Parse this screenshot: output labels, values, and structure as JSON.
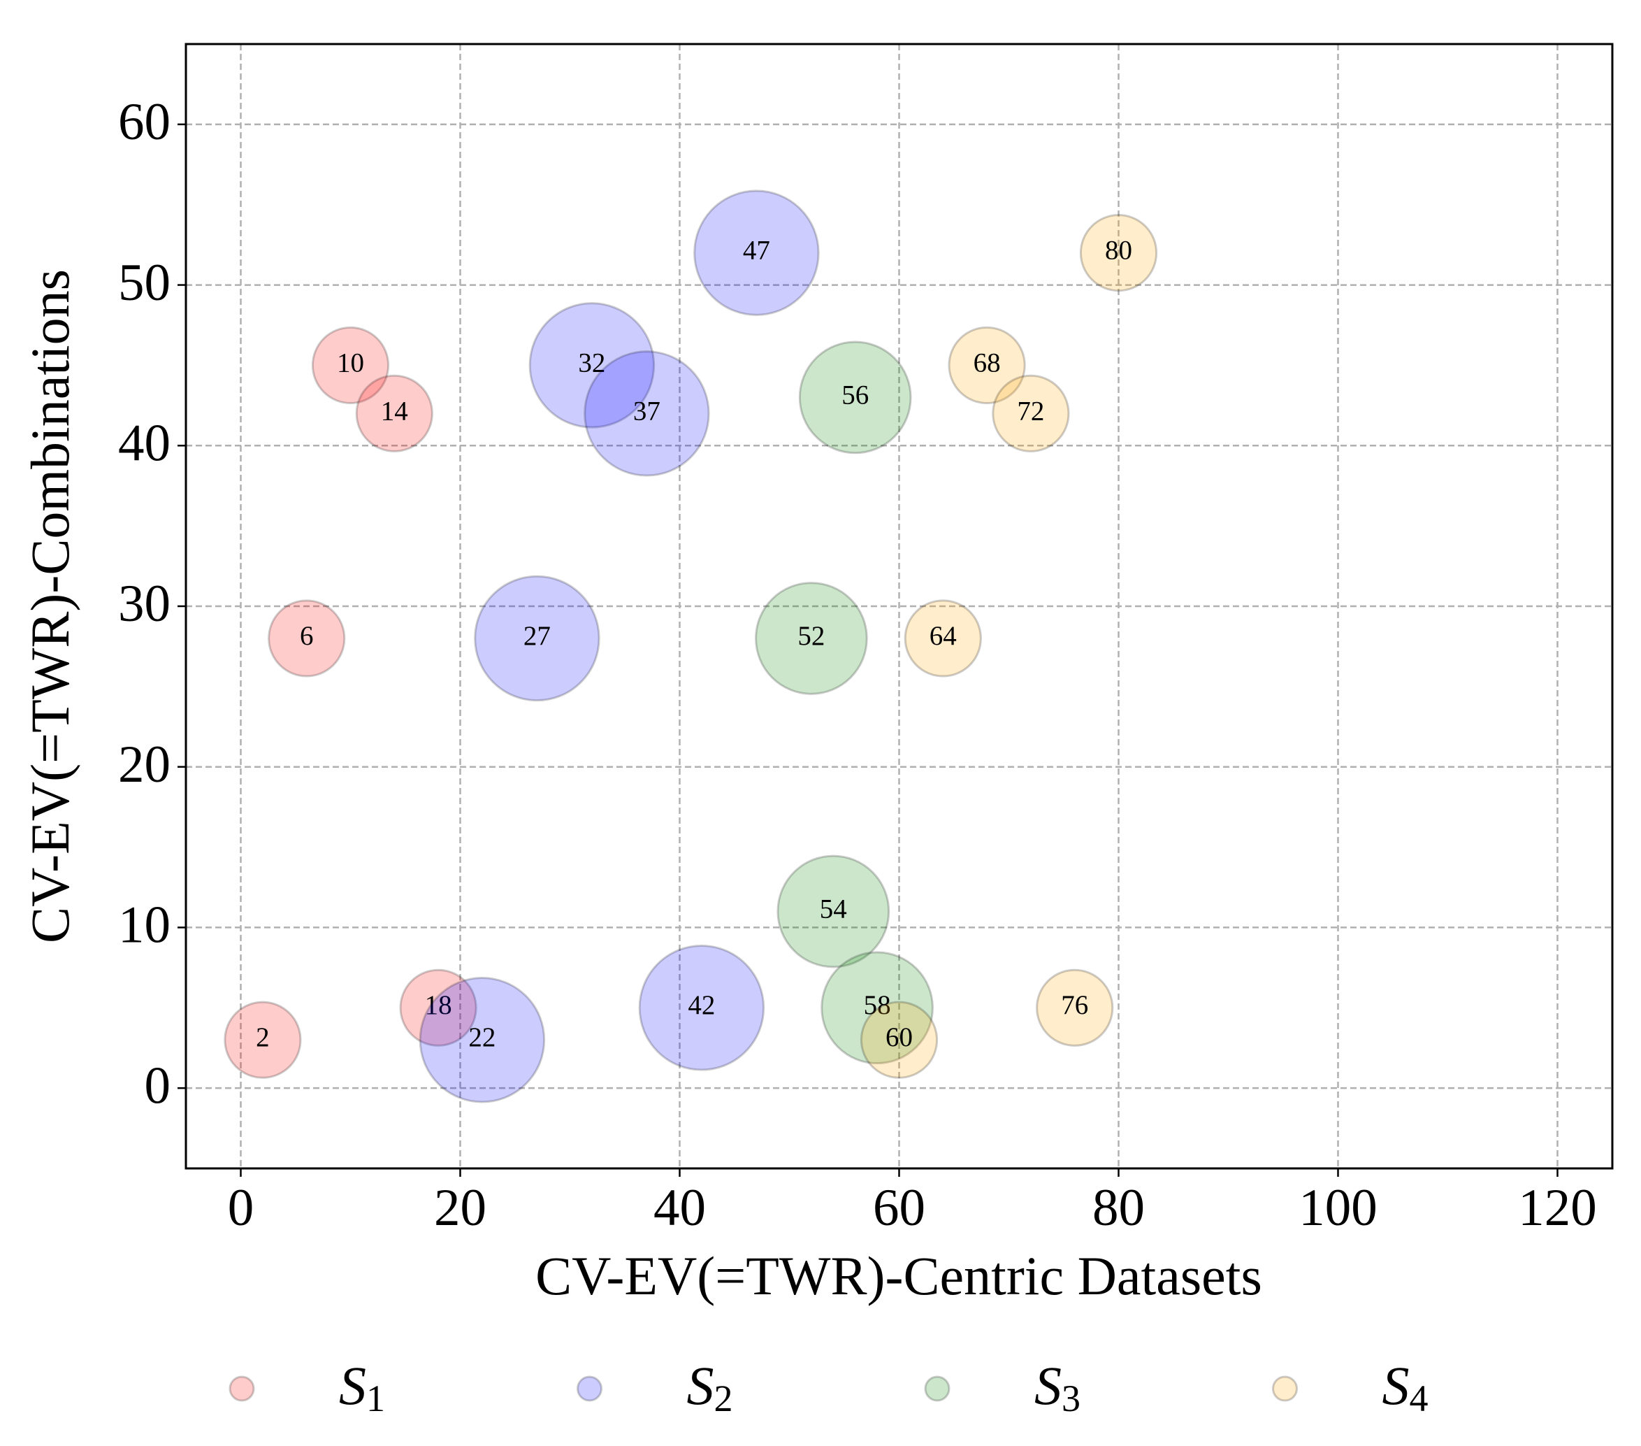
{
  "chart_data": {
    "type": "bubble",
    "xlabel": "CV-EV(=TWR)-Centric Datasets",
    "ylabel": "CV-EV(=TWR)-Combinations",
    "xlim": [
      -5,
      125
    ],
    "ylim": [
      -5,
      65
    ],
    "xticks": [
      0,
      20,
      40,
      60,
      80,
      100,
      120
    ],
    "yticks": [
      0,
      10,
      20,
      30,
      40,
      50,
      60
    ],
    "grid": true,
    "legend": "lower center",
    "series": [
      {
        "name": "S1",
        "color": "#ff0000",
        "x": [
          2,
          6,
          10,
          14,
          18
        ],
        "values": [
          3,
          28,
          45,
          42,
          5
        ],
        "sizes": [
          1300,
          1300,
          1300,
          1300,
          1300
        ]
      },
      {
        "name": "S2",
        "color": "#0000ff",
        "x": [
          22,
          27,
          32,
          37,
          42,
          47
        ],
        "values": [
          3,
          28,
          45,
          42,
          5,
          52
        ],
        "sizes": [
          3500,
          3500,
          3500,
          3500,
          3500,
          3500
        ]
      },
      {
        "name": "S3",
        "color": "#008000",
        "x": [
          52,
          54,
          56,
          58
        ],
        "values": [
          28,
          11,
          43,
          5
        ],
        "sizes": [
          2800,
          2800,
          2800,
          2800
        ]
      },
      {
        "name": "S4",
        "color": "#ffa500",
        "x": [
          60,
          64,
          68,
          72,
          76,
          80
        ],
        "values": [
          3,
          28,
          45,
          42,
          5,
          52
        ],
        "sizes": [
          1300,
          1300,
          1300,
          1300,
          1300,
          1300
        ]
      }
    ]
  }
}
